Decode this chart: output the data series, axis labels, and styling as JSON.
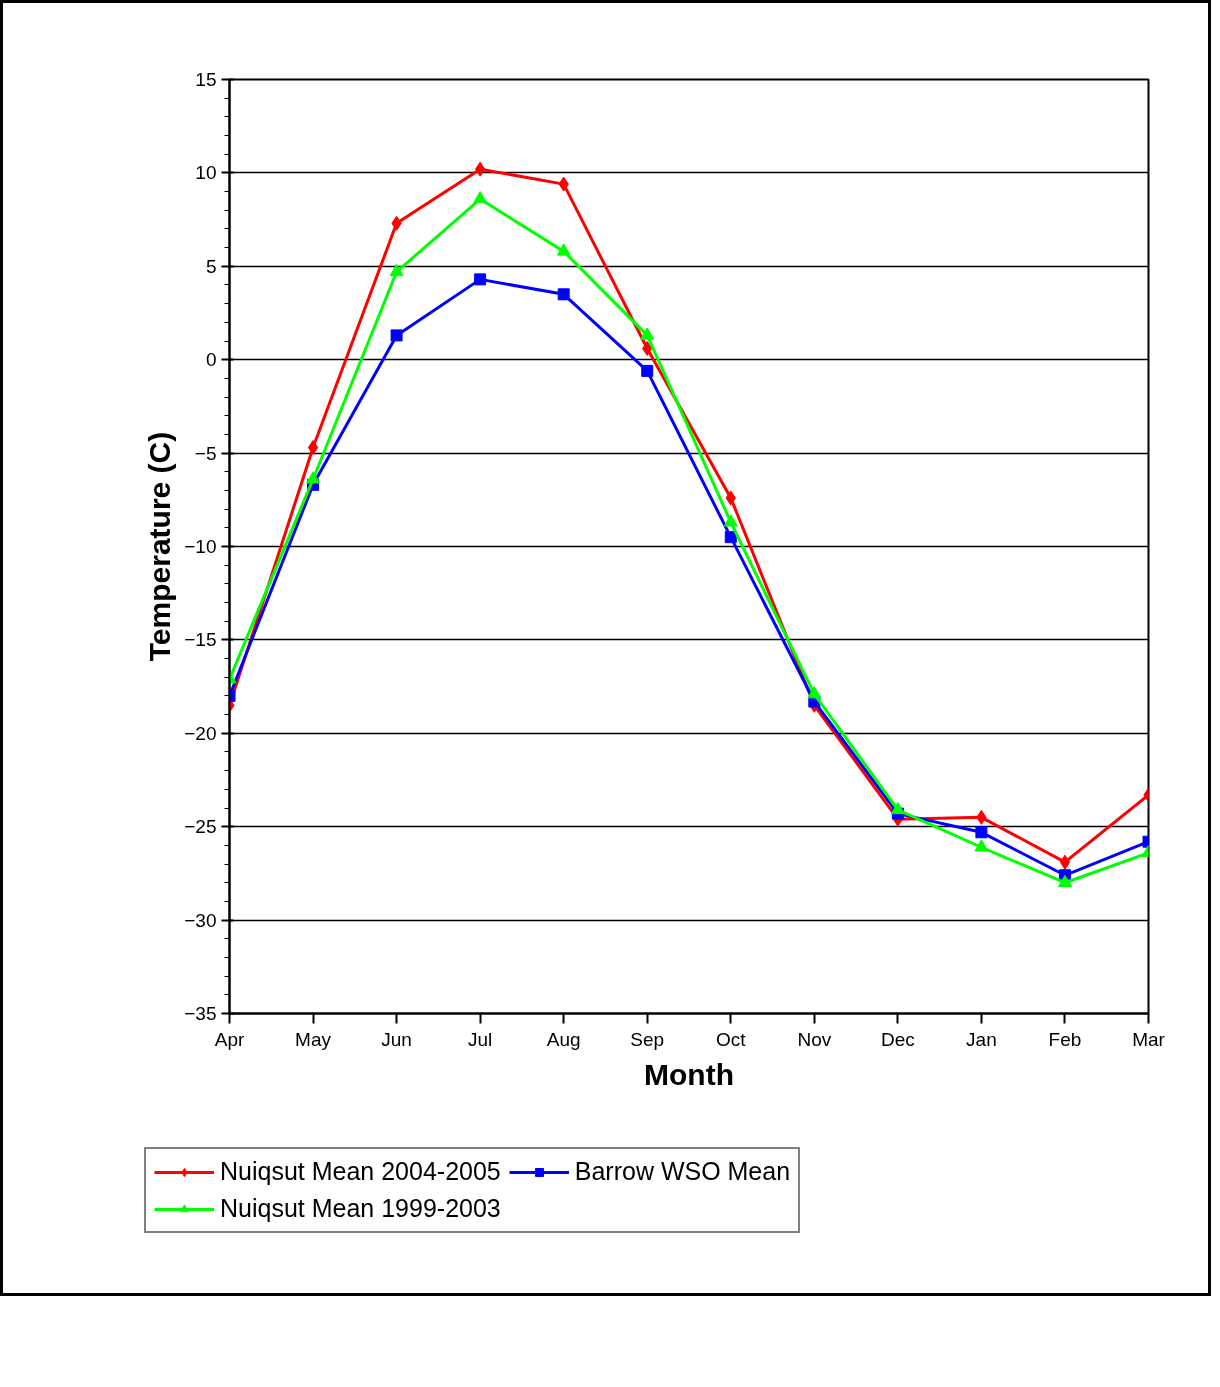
{
  "chart_data": {
    "type": "line",
    "xlabel": "Month",
    "ylabel": "Temperature (C)",
    "categories": [
      "Apr",
      "May",
      "Jun",
      "Jul",
      "Aug",
      "Sep",
      "Oct",
      "Nov",
      "Dec",
      "Jan",
      "Feb",
      "Mar"
    ],
    "series": [
      {
        "name": "Nuiqsut Mean 2004-2005",
        "color": "#ff0000",
        "marker": "diamond",
        "values": [
          -18.5,
          -4.7,
          7.3,
          10.2,
          9.4,
          0.6,
          -7.4,
          -18.5,
          -24.6,
          -24.5,
          -26.9,
          -23.3
        ]
      },
      {
        "name": "Barrow WSO Mean",
        "color": "#0000ff",
        "marker": "square",
        "values": [
          -18.0,
          -6.7,
          1.3,
          4.3,
          3.5,
          -0.6,
          -9.5,
          -18.3,
          -24.3,
          -25.3,
          -27.6,
          -25.8
        ]
      },
      {
        "name": "Nuiqsut Mean 1999-2003",
        "color": "#00ff00",
        "marker": "triangle",
        "values": [
          -17.1,
          -6.4,
          4.7,
          8.6,
          5.8,
          1.3,
          -8.7,
          -17.9,
          -24.1,
          -26.1,
          -28.0,
          -26.4
        ]
      }
    ],
    "ylim": [
      -35,
      15
    ],
    "yticks": [
      -35,
      -30,
      -25,
      -20,
      -15,
      -10,
      -5,
      0,
      5,
      10,
      15
    ],
    "grid": "y",
    "legend": "bottom"
  }
}
